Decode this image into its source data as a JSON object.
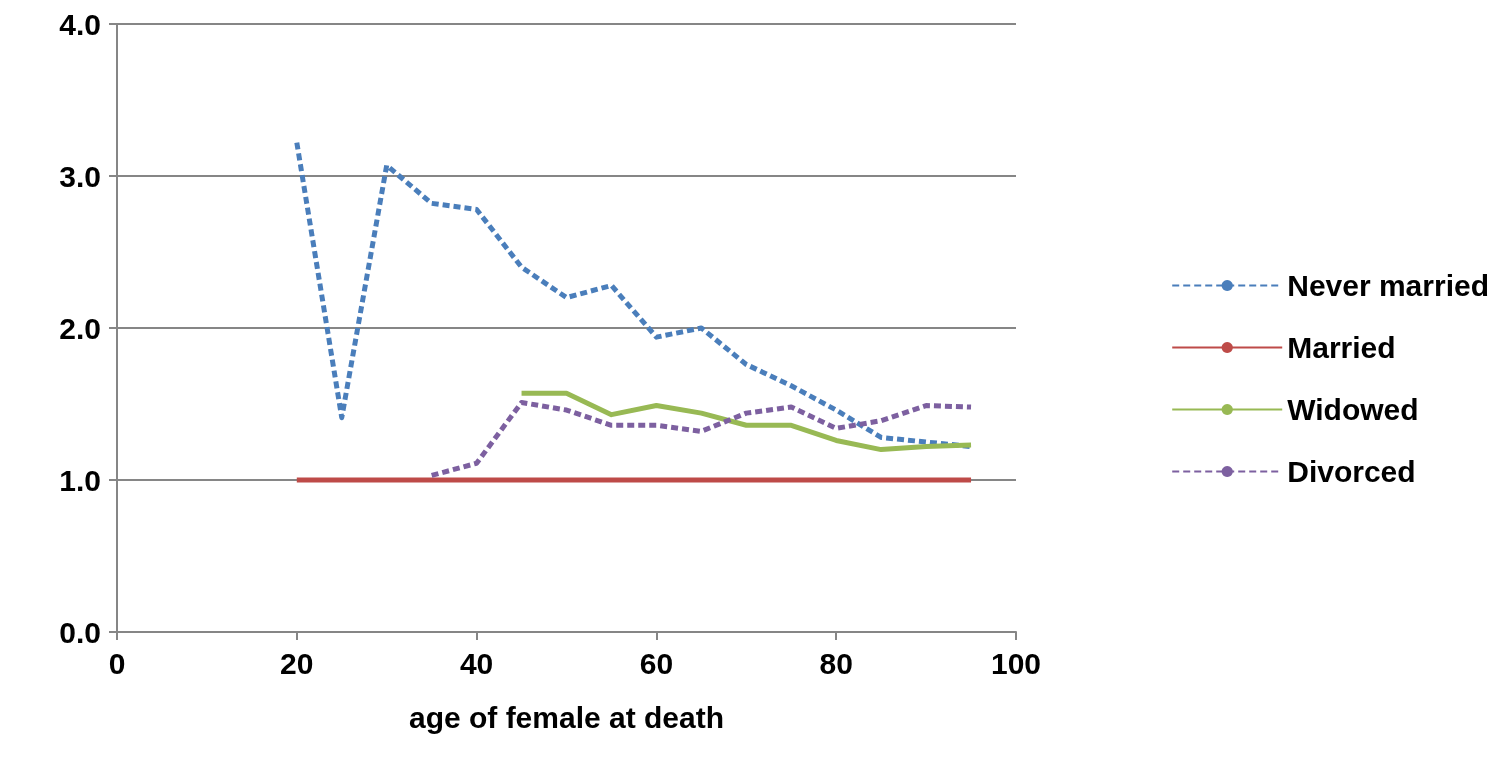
{
  "chart_data": {
    "type": "line",
    "xlabel": "age of female at death",
    "x": [
      20,
      25,
      30,
      35,
      40,
      45,
      50,
      55,
      60,
      65,
      70,
      75,
      80,
      85,
      90,
      95
    ],
    "series": [
      {
        "name": "Never married",
        "color": "#4a7ebb",
        "line_style": "dashed",
        "values": [
          3.22,
          1.41,
          3.07,
          2.82,
          2.78,
          2.4,
          2.2,
          2.28,
          1.94,
          2.0,
          1.76,
          1.62,
          1.46,
          1.28,
          1.25,
          1.22
        ]
      },
      {
        "name": "Married",
        "color": "#be4b48",
        "line_style": "solid",
        "values": [
          1.0,
          1.0,
          1.0,
          1.0,
          1.0,
          1.0,
          1.0,
          1.0,
          1.0,
          1.0,
          1.0,
          1.0,
          1.0,
          1.0,
          1.0,
          1.0
        ]
      },
      {
        "name": "Widowed",
        "color": "#98b954",
        "line_style": "solid",
        "values": [
          null,
          null,
          null,
          null,
          null,
          1.57,
          1.57,
          1.43,
          1.49,
          1.44,
          1.36,
          1.36,
          1.26,
          1.2,
          1.22,
          1.23
        ]
      },
      {
        "name": "Divorced",
        "color": "#7d60a0",
        "line_style": "dashed",
        "values": [
          null,
          null,
          null,
          1.03,
          1.11,
          1.51,
          1.46,
          1.36,
          1.36,
          1.32,
          1.44,
          1.48,
          1.34,
          1.39,
          1.49,
          1.48
        ]
      }
    ],
    "xlim": [
      0,
      100
    ],
    "xticks": [
      0,
      20,
      40,
      60,
      80,
      100
    ],
    "ylim": [
      0,
      4
    ],
    "yticks": [
      {
        "value": 0,
        "label": "0.0"
      },
      {
        "value": 1,
        "label": "1.0"
      },
      {
        "value": 2,
        "label": "2.0"
      },
      {
        "value": 3,
        "label": "3.0"
      },
      {
        "value": 4,
        "label": "4.0"
      }
    ],
    "grid": "y",
    "legend": "right",
    "marker": "none"
  }
}
